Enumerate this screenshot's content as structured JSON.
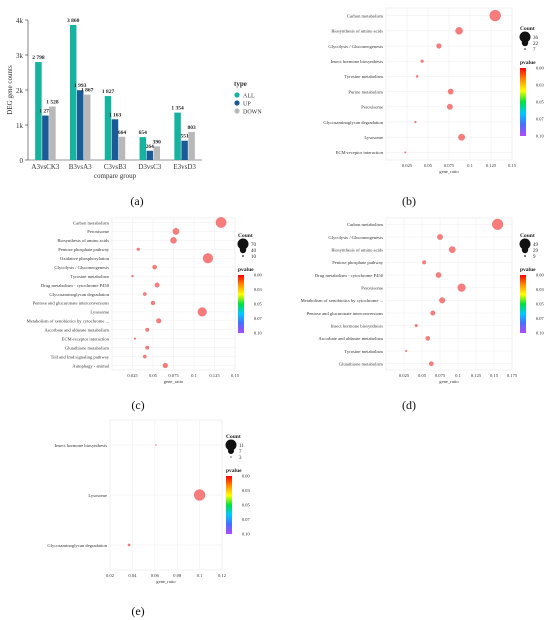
{
  "colors": {
    "bar_all": "#16b3a1",
    "bar_up": "#1a5b97",
    "bar_down": "#b8b8b8",
    "dot": "#f77d7d",
    "dot_stroke": "#e65a5a",
    "gradient": [
      "#ff0000",
      "#ff8c00",
      "#ffff00",
      "#00e040",
      "#00c8ff",
      "#4a6dff",
      "#b04cff"
    ]
  },
  "chart_data": [
    {
      "type": "bar",
      "caption": "(a)",
      "categories": [
        "A3vsCK3",
        "B3vsA3",
        "C3vsB3",
        "D3vsC3",
        "E3vsD3"
      ],
      "series": [
        {
          "name": "ALL",
          "values": [
            2798,
            3860,
            1827,
            654,
            1354
          ]
        },
        {
          "name": "UP",
          "values": [
            1270,
            1993,
            1163,
            264,
            551
          ]
        },
        {
          "name": "DOWN",
          "values": [
            1528,
            1867,
            664,
            390,
            803
          ]
        }
      ],
      "value_labels": [
        [
          "2 798",
          "1 270",
          "1 528"
        ],
        [
          "3 860",
          "1 993",
          "1 867"
        ],
        [
          "1 827",
          "1 163",
          "664"
        ],
        [
          "654",
          "264",
          "390"
        ],
        [
          "1 354",
          "551",
          "803"
        ]
      ],
      "xlabel": "compare group",
      "ylabel": "DEG gene counts",
      "ylim": [
        0,
        4000
      ],
      "yticks": [
        0,
        1000,
        2000,
        3000,
        4000
      ],
      "ytick_labels": [
        "0",
        "1k",
        "2k",
        "3k",
        "4k"
      ],
      "legend_title": "type",
      "legend_position": "right"
    },
    {
      "type": "scatter",
      "caption": "(b)",
      "xlabel": "gene_ratio",
      "xlim": [
        0,
        0.15
      ],
      "xticks": [
        0.025,
        0.05,
        0.075,
        0.1,
        0.125,
        0.15
      ],
      "xtick_labels": [
        "0.025",
        "0.05",
        "0.075",
        "0.1",
        "0.125",
        "0.15"
      ],
      "size_legend_title": "Count",
      "size_legend": [
        36,
        22,
        7
      ],
      "size_range": [
        7,
        36
      ],
      "color_legend_title": "pvalue",
      "color_ticks": [
        "0.00",
        "0.03",
        "0.05",
        "0.07",
        "0.10"
      ],
      "categories": [
        "Carbon metabolism",
        "Biosynthesis of amino acids",
        "Glycolysis / Gluconeogenesis",
        "Insect hormone biosynthesis",
        "Tyrosine metabolism",
        "Purine metabolism",
        "Peroxisome",
        "Glycosaminoglycan degradation",
        "Lysosome",
        "ECM-receptor interaction"
      ],
      "x": [
        0.13,
        0.087,
        0.063,
        0.043,
        0.037,
        0.077,
        0.076,
        0.035,
        0.09,
        0.023
      ],
      "counts": [
        36,
        24,
        17,
        11,
        9,
        19,
        19,
        8,
        22,
        5
      ]
    },
    {
      "type": "scatter",
      "caption": "(c)",
      "xlabel": "gene_ratio",
      "xlim": [
        0,
        0.15
      ],
      "xticks": [
        0.025,
        0.05,
        0.075,
        0.1,
        0.125,
        0.15
      ],
      "xtick_labels": [
        "0.025",
        "0.05",
        "0.075",
        "0.1",
        "0.125",
        "0.15"
      ],
      "size_legend_title": "Count",
      "size_legend": [
        70,
        40,
        10
      ],
      "size_range": [
        10,
        70
      ],
      "color_legend_title": "pvalue",
      "color_ticks": [
        "0.00",
        "0.03",
        "0.05",
        "0.07",
        "0.10"
      ],
      "categories": [
        "Carbon metabolism",
        "Peroxisome",
        "Biosynthesis of amino acids",
        "Pentose phosphate pathway",
        "Oxidative phosphorylation",
        "Glycolysis / Gluconeogenesis",
        "Tyrosine metabolism",
        "Drug metabolism - cytochrome P450",
        "Glycosaminoglycan degradation",
        "Pentose and glucuronate interconversions",
        "Lysosome",
        "Metabolism of xenobiotics by cytochrome ...",
        "Ascorbate and aldarate metabolism",
        "ECM-receptor interaction",
        "Glutathione metabolism",
        "Toll and Imd signaling pathway",
        "Autophagy - animal"
      ],
      "x": [
        0.133,
        0.078,
        0.075,
        0.032,
        0.117,
        0.052,
        0.025,
        0.055,
        0.04,
        0.05,
        0.11,
        0.057,
        0.043,
        0.028,
        0.043,
        0.04,
        0.065
      ],
      "counts": [
        66,
        40,
        38,
        17,
        62,
        26,
        12,
        28,
        20,
        24,
        56,
        29,
        22,
        10,
        22,
        20,
        30
      ]
    },
    {
      "type": "scatter",
      "caption": "(d)",
      "xlabel": "gene_ratio",
      "xlim": [
        0,
        0.175
      ],
      "xticks": [
        0.025,
        0.05,
        0.075,
        0.1,
        0.125,
        0.15,
        0.175
      ],
      "xtick_labels": [
        "0.025",
        "0.05",
        "0.075",
        "0.1",
        "0.125",
        "0.15",
        "0.175"
      ],
      "size_legend_title": "Count",
      "size_legend": [
        49,
        29,
        9
      ],
      "size_range": [
        9,
        49
      ],
      "color_legend_title": "pvalue",
      "color_ticks": [
        "0.00",
        "0.03",
        "0.05",
        "0.07",
        "0.10"
      ],
      "categories": [
        "Carbon metabolism",
        "Glycolysis / Gluconeogenesis",
        "Biosynthesis of amino acids",
        "Pentose phosphate pathway",
        "Drug metabolism - cytochrome P450",
        "Peroxisome",
        "Metabolism of xenobiotics by cytochrome ...",
        "Pentose and glucuronate interconversions",
        "Insect hormone biosynthesis",
        "Ascorbate and aldarate metabolism",
        "Tyrosine metabolism",
        "Glutathione metabolism"
      ],
      "x": [
        0.155,
        0.075,
        0.092,
        0.053,
        0.073,
        0.105,
        0.078,
        0.065,
        0.042,
        0.058,
        0.028,
        0.063
      ],
      "counts": [
        48,
        25,
        29,
        17,
        24,
        35,
        26,
        21,
        13,
        19,
        8,
        20
      ]
    },
    {
      "type": "scatter",
      "caption": "(e)",
      "xlabel": "gene_ratio",
      "xlim": [
        0.02,
        0.12
      ],
      "xticks": [
        0.02,
        0.04,
        0.06,
        0.08,
        0.1,
        0.12
      ],
      "xtick_labels": [
        "0.02",
        "0.04",
        "0.06",
        "0.08",
        "0.1",
        "0.12"
      ],
      "size_legend_title": "Count",
      "size_legend": [
        11,
        7,
        3
      ],
      "size_range": [
        3,
        11
      ],
      "color_legend_title": "pvalue",
      "color_ticks": [
        "0.00",
        "0.03",
        "0.05",
        "0.07",
        "0.10"
      ],
      "categories": [
        "Insect hormone biosynthesis",
        "Lysosome",
        "Glycosaminoglycan degradation"
      ],
      "x": [
        0.061,
        0.1,
        0.037
      ],
      "counts": [
        2,
        11,
        4
      ]
    }
  ]
}
